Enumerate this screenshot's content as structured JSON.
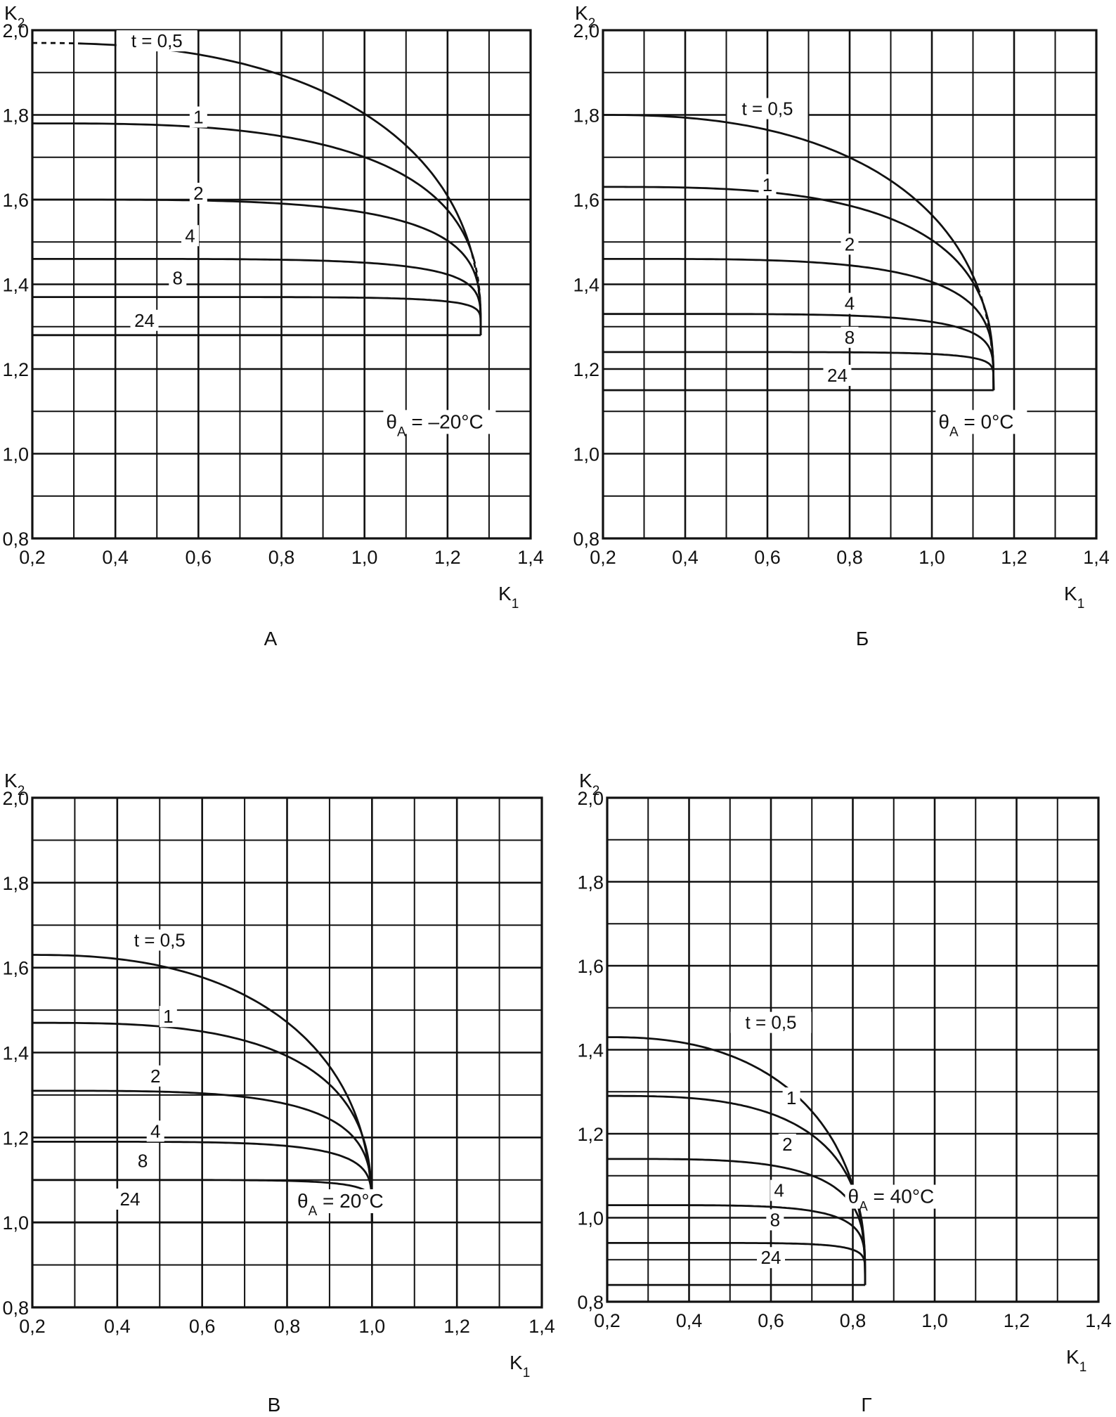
{
  "figure": {
    "background": "#ffffff",
    "ink": "#111111"
  },
  "chart_data": [
    {
      "panel_label": "А",
      "type": "line",
      "xlabel": "K",
      "xlabel_sub": "1",
      "ylabel": "K",
      "ylabel_sub": "2",
      "xlim": [
        0.2,
        1.4
      ],
      "ylim": [
        0.8,
        2.0
      ],
      "x_ticks": [
        "0,2",
        "0,4",
        "0,6",
        "0,8",
        "1,0",
        "1,2",
        "1,4"
      ],
      "y_ticks": [
        "0,8",
        "1,0",
        "1,2",
        "1,4",
        "1,6",
        "1,8",
        "2,0"
      ],
      "grid": true,
      "annotation": {
        "symbol": "θ",
        "sub": "A",
        "text": " = –20°C"
      },
      "k1_max": 1.28,
      "k2_min": 1.28,
      "series": [
        {
          "name": "t = 0,5",
          "label_x": 0.5,
          "label_y": 1.96,
          "k2_at_0_2": 1.97,
          "dashed_start": 0.3,
          "dashed_end": 1.25
        },
        {
          "name": "1",
          "label_x": 0.6,
          "label_y": 1.78,
          "k2_at_0_2": 1.78,
          "dashed_end": 1.26
        },
        {
          "name": "2",
          "label_x": 0.6,
          "label_y": 1.6,
          "k2_at_0_2": 1.6
        },
        {
          "name": "4",
          "label_x": 0.58,
          "label_y": 1.5,
          "k2_at_0_2": 1.46
        },
        {
          "name": "8",
          "label_x": 0.55,
          "label_y": 1.4,
          "k2_at_0_2": 1.37
        },
        {
          "name": "24",
          "label_x": 0.47,
          "label_y": 1.3,
          "k2_at_0_2": 1.28
        }
      ]
    },
    {
      "panel_label": "Б",
      "type": "line",
      "xlabel": "K",
      "xlabel_sub": "1",
      "ylabel": "K",
      "ylabel_sub": "2",
      "xlim": [
        0.2,
        1.4
      ],
      "ylim": [
        0.8,
        2.0
      ],
      "x_ticks": [
        "0,2",
        "0,4",
        "0,6",
        "0,8",
        "1,0",
        "1,2",
        "1,4"
      ],
      "y_ticks": [
        "0,8",
        "1,0",
        "1,2",
        "1,4",
        "1,6",
        "1,8",
        "2,0"
      ],
      "grid": true,
      "annotation": {
        "symbol": "θ",
        "sub": "A",
        "text": " = 0°C"
      },
      "k1_max": 1.15,
      "k2_min": 1.15,
      "series": [
        {
          "name": "t = 0,5",
          "label_x": 0.6,
          "label_y": 1.8,
          "k2_at_0_2": 1.8,
          "dashed_end": 1.11
        },
        {
          "name": "1",
          "label_x": 0.6,
          "label_y": 1.62,
          "k2_at_0_2": 1.63
        },
        {
          "name": "2",
          "label_x": 0.8,
          "label_y": 1.48,
          "k2_at_0_2": 1.46
        },
        {
          "name": "4",
          "label_x": 0.8,
          "label_y": 1.34,
          "k2_at_0_2": 1.33
        },
        {
          "name": "8",
          "label_x": 0.8,
          "label_y": 1.26,
          "k2_at_0_2": 1.24
        },
        {
          "name": "24",
          "label_x": 0.77,
          "label_y": 1.17,
          "k2_at_0_2": 1.15
        }
      ]
    },
    {
      "panel_label": "В",
      "type": "line",
      "xlabel": "K",
      "xlabel_sub": "1",
      "ylabel": "K",
      "ylabel_sub": "2",
      "xlim": [
        0.2,
        1.4
      ],
      "ylim": [
        0.8,
        2.0
      ],
      "x_ticks": [
        "0,2",
        "0,4",
        "0,6",
        "0,8",
        "1,0",
        "1,2",
        "1,4"
      ],
      "y_ticks": [
        "0,8",
        "1,0",
        "1,2",
        "1,4",
        "1,6",
        "1,8",
        "2,0"
      ],
      "grid": true,
      "annotation": {
        "symbol": "θ",
        "sub": "A",
        "text": " = 20°C"
      },
      "k1_max": 1.0,
      "k2_min": 1.0,
      "series": [
        {
          "name": "t = 0,5",
          "label_x": 0.5,
          "label_y": 1.65,
          "k2_at_0_2": 1.63
        },
        {
          "name": "1",
          "label_x": 0.52,
          "label_y": 1.47,
          "k2_at_0_2": 1.47
        },
        {
          "name": "2",
          "label_x": 0.49,
          "label_y": 1.33,
          "k2_at_0_2": 1.31
        },
        {
          "name": "4",
          "label_x": 0.49,
          "label_y": 1.2,
          "k2_at_0_2": 1.19
        },
        {
          "name": "8",
          "label_x": 0.46,
          "label_y": 1.13,
          "k2_at_0_2": 1.1
        },
        {
          "name": "24",
          "label_x": 0.43,
          "label_y": 1.04,
          "k2_at_0_2": 1.0
        }
      ]
    },
    {
      "panel_label": "Г",
      "type": "line",
      "xlabel": "K",
      "xlabel_sub": "1",
      "ylabel": "K",
      "ylabel_sub": "2",
      "xlim": [
        0.2,
        1.4
      ],
      "ylim": [
        0.8,
        2.0
      ],
      "x_ticks": [
        "0,2",
        "0,4",
        "0,6",
        "0,8",
        "1,0",
        "1,2",
        "1,4"
      ],
      "y_ticks": [
        "0,8",
        "1,0",
        "1,2",
        "1,4",
        "1,6",
        "1,8",
        "2,0"
      ],
      "grid": true,
      "annotation": {
        "symbol": "θ",
        "sub": "A",
        "text": " = 40°C"
      },
      "k1_max": 0.83,
      "k2_min": 0.84,
      "series": [
        {
          "name": "t = 0,5",
          "label_x": 0.6,
          "label_y": 1.45,
          "k2_at_0_2": 1.43
        },
        {
          "name": "1",
          "label_x": 0.65,
          "label_y": 1.27,
          "k2_at_0_2": 1.29
        },
        {
          "name": "2",
          "label_x": 0.64,
          "label_y": 1.16,
          "k2_at_0_2": 1.14
        },
        {
          "name": "4",
          "label_x": 0.62,
          "label_y": 1.05,
          "k2_at_0_2": 1.03
        },
        {
          "name": "8",
          "label_x": 0.61,
          "label_y": 0.98,
          "k2_at_0_2": 0.94
        },
        {
          "name": "24",
          "label_x": 0.6,
          "label_y": 0.89,
          "k2_at_0_2": 0.84
        }
      ]
    }
  ]
}
